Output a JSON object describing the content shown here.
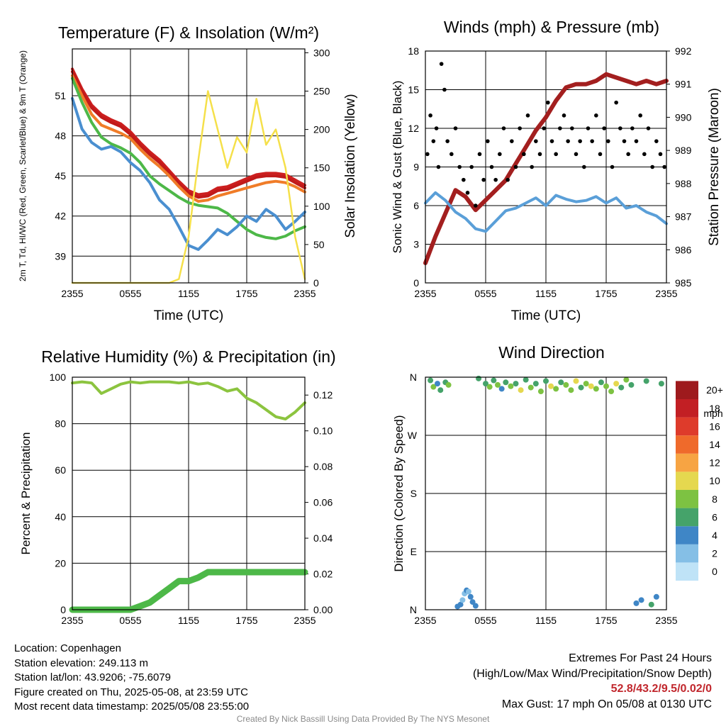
{
  "chart_data": [
    {
      "type": "line",
      "title": "Temperature (F) & Insolation (W/m²)",
      "xlabel": "Time (UTC)",
      "ylabel": "2m T, Td, HI/WC (Red, Green, Scarlet/Blue) & 9m T (Orange)",
      "y2label": "Solar Insolation (Yellow)",
      "x_ticks": [
        "2355",
        "0555",
        "1155",
        "1755",
        "2355"
      ],
      "ylim": [
        37,
        54.5
      ],
      "y_ticks": [
        39,
        42,
        45,
        48,
        51
      ],
      "y2lim": [
        0,
        305
      ],
      "y2_ticks": [
        0,
        50,
        100,
        150,
        200,
        250,
        300
      ],
      "grid": true,
      "series": [
        {
          "name": "2m T",
          "color": "#cc1f1f",
          "axis": "left",
          "x": [
            0,
            1,
            2,
            3,
            4,
            5,
            6,
            7,
            8,
            9,
            10,
            11,
            12,
            13,
            14,
            15,
            16,
            17,
            18,
            19,
            20,
            21,
            22,
            23,
            24
          ],
          "values": [
            53.0,
            51.5,
            50.3,
            49.6,
            49.2,
            48.9,
            48.3,
            47.5,
            46.8,
            46.2,
            45.4,
            44.6,
            43.9,
            43.6,
            43.7,
            44.1,
            44.2,
            44.5,
            44.8,
            45.1,
            45.2,
            45.2,
            45.1,
            44.7,
            44.3
          ]
        },
        {
          "name": "HI/WC",
          "color": "#c11a1a",
          "axis": "left",
          "x": [
            0,
            1,
            2,
            3,
            4,
            5,
            6,
            7,
            8,
            9,
            10,
            11,
            12,
            13,
            14,
            15,
            16,
            17,
            18,
            19,
            20,
            21,
            22,
            23,
            24
          ],
          "values": [
            52.8,
            51.3,
            50.1,
            49.4,
            49.0,
            48.7,
            48.1,
            47.3,
            46.6,
            46.0,
            45.2,
            44.4,
            43.7,
            43.4,
            43.5,
            43.9,
            44.0,
            44.3,
            44.6,
            44.9,
            45.0,
            45.0,
            44.9,
            44.5,
            44.1
          ]
        },
        {
          "name": "9m T",
          "color": "#f07c28",
          "axis": "left",
          "x": [
            0,
            1,
            2,
            3,
            4,
            5,
            6,
            7,
            8,
            9,
            10,
            11,
            12,
            13,
            14,
            15,
            16,
            17,
            18,
            19,
            20,
            21,
            22,
            23,
            24
          ],
          "values": [
            52.5,
            51.0,
            49.6,
            48.8,
            48.5,
            48.2,
            47.8,
            47.0,
            46.3,
            45.7,
            45.0,
            44.2,
            43.5,
            43.1,
            43.2,
            43.5,
            43.7,
            43.9,
            44.1,
            44.3,
            44.5,
            44.6,
            44.5,
            44.2,
            43.8
          ]
        },
        {
          "name": "Td",
          "color": "#4db848",
          "axis": "left",
          "x": [
            0,
            1,
            2,
            3,
            4,
            5,
            6,
            7,
            8,
            9,
            10,
            11,
            12,
            13,
            14,
            15,
            16,
            17,
            18,
            19,
            20,
            21,
            22,
            23,
            24
          ],
          "values": [
            52.3,
            50.5,
            49.0,
            47.9,
            47.4,
            47.1,
            46.7,
            46.0,
            45.0,
            44.4,
            43.9,
            43.4,
            43.0,
            42.8,
            42.7,
            42.6,
            42.2,
            41.6,
            41.0,
            40.6,
            40.4,
            40.3,
            40.5,
            40.9,
            41.2
          ]
        },
        {
          "name": "Wind Chill",
          "color": "#4a8fd0",
          "axis": "left",
          "x": [
            0,
            1,
            2,
            3,
            4,
            5,
            6,
            7,
            8,
            9,
            10,
            11,
            12,
            13,
            14,
            15,
            16,
            17,
            18,
            19,
            20,
            21,
            22,
            23,
            24
          ],
          "values": [
            50.8,
            48.5,
            47.5,
            47.0,
            47.2,
            46.8,
            46.0,
            45.4,
            44.5,
            43.2,
            42.5,
            41.2,
            39.8,
            39.5,
            40.2,
            41.0,
            40.6,
            41.2,
            42.0,
            41.6,
            42.5,
            42.0,
            41.0,
            41.6,
            42.3
          ]
        },
        {
          "name": "Solar Insolation",
          "color": "#f5e04a",
          "axis": "right",
          "x": [
            0,
            1,
            2,
            3,
            4,
            5,
            6,
            7,
            8,
            9,
            10,
            11,
            12,
            13,
            14,
            15,
            16,
            17,
            18,
            19,
            20,
            21,
            22,
            23,
            24
          ],
          "values": [
            0,
            0,
            0,
            0,
            0,
            0,
            0,
            0,
            0,
            0,
            0,
            5,
            60,
            160,
            250,
            200,
            150,
            190,
            170,
            240,
            180,
            200,
            150,
            60,
            5
          ]
        }
      ]
    },
    {
      "type": "scatter",
      "title": "Winds (mph) & Pressure (mb)",
      "xlabel": "Time (UTC)",
      "ylabel": "Sonic Wind & Gust (Blue, Black)",
      "y2label": "Station Pressure (Maroon)",
      "x_ticks": [
        "2355",
        "0555",
        "1155",
        "1755",
        "2355"
      ],
      "ylim": [
        0,
        18
      ],
      "y_ticks": [
        0,
        3,
        6,
        9,
        12,
        15,
        18
      ],
      "y2lim": [
        985,
        992
      ],
      "y2_ticks": [
        985,
        986,
        987,
        988,
        989,
        990,
        991,
        992
      ],
      "grid": true,
      "series": [
        {
          "name": "Station Pressure",
          "color": "#a31f1f",
          "type": "line",
          "axis": "right",
          "x": [
            0,
            1,
            2,
            3,
            4,
            5,
            6,
            7,
            8,
            9,
            10,
            11,
            12,
            13,
            14,
            15,
            16,
            17,
            18,
            19,
            20,
            21,
            22,
            23,
            24
          ],
          "values": [
            985.6,
            986.4,
            987.1,
            987.8,
            987.6,
            987.2,
            987.5,
            987.8,
            988.1,
            988.6,
            989.1,
            989.6,
            990.0,
            990.5,
            990.9,
            991.0,
            991.0,
            991.1,
            991.3,
            991.2,
            991.1,
            991.0,
            991.1,
            991.0,
            991.1
          ]
        },
        {
          "name": "Sonic Wind",
          "color": "#5a9fd8",
          "type": "line",
          "axis": "left",
          "x": [
            0,
            1,
            2,
            3,
            4,
            5,
            6,
            7,
            8,
            9,
            10,
            11,
            12,
            13,
            14,
            15,
            16,
            17,
            18,
            19,
            20,
            21,
            22,
            23,
            24
          ],
          "values": [
            6.2,
            7.0,
            6.4,
            5.5,
            5.0,
            4.2,
            4.0,
            4.8,
            5.6,
            5.8,
            6.2,
            6.6,
            6.0,
            6.8,
            6.5,
            6.3,
            6.4,
            6.7,
            6.2,
            6.6,
            5.8,
            6.0,
            5.5,
            5.2,
            4.6
          ]
        },
        {
          "name": "Gust",
          "color": "#000000",
          "type": "scatter",
          "axis": "left",
          "x": [
            0.2,
            0.5,
            0.8,
            1.1,
            1.3,
            1.6,
            1.9,
            2.2,
            2.6,
            3.0,
            3.4,
            3.8,
            4.2,
            4.6,
            5.0,
            5.4,
            5.8,
            6.2,
            6.6,
            7.0,
            7.4,
            7.8,
            8.2,
            8.6,
            9.0,
            9.4,
            9.8,
            10.2,
            10.6,
            11.0,
            11.4,
            11.8,
            12.2,
            12.6,
            13.0,
            13.4,
            13.8,
            14.2,
            14.6,
            15.0,
            15.4,
            15.8,
            16.2,
            16.6,
            17.0,
            17.4,
            17.8,
            18.2,
            18.6,
            19.0,
            19.4,
            19.8,
            20.2,
            20.6,
            21.0,
            21.4,
            21.8,
            22.2,
            22.6,
            23.0,
            23.4,
            23.8
          ],
          "values": [
            10,
            13,
            11,
            12,
            9,
            17,
            15,
            11,
            10,
            12,
            9,
            8,
            7,
            9,
            6,
            10,
            8,
            11,
            9,
            8,
            10,
            12,
            8,
            11,
            9,
            12,
            10,
            13,
            9,
            11,
            10,
            12,
            14,
            11,
            10,
            12,
            13,
            11,
            12,
            10,
            11,
            9,
            12,
            11,
            13,
            10,
            12,
            11,
            9,
            14,
            12,
            11,
            10,
            12,
            11,
            13,
            10,
            12,
            9,
            11,
            10,
            9
          ]
        }
      ]
    },
    {
      "type": "line",
      "title": "Relative Humidity (%) & Precipitation (in)",
      "ylabel": "Percent & Precipitation",
      "x_ticks": [
        "2355",
        "0555",
        "1155",
        "1755",
        "2355"
      ],
      "ylim": [
        0,
        100
      ],
      "y_ticks": [
        0,
        20,
        40,
        60,
        80,
        100
      ],
      "y2lim": [
        0,
        0.13
      ],
      "y2_ticks": [
        "0.00",
        "0.02",
        "0.04",
        "0.06",
        "0.08",
        "0.10",
        "0.12"
      ],
      "grid": true,
      "series": [
        {
          "name": "Relative Humidity",
          "color": "#8cc43f",
          "axis": "left",
          "x": [
            0,
            1,
            2,
            3,
            4,
            5,
            6,
            7,
            8,
            9,
            10,
            11,
            12,
            13,
            14,
            15,
            16,
            17,
            18,
            19,
            20,
            21,
            22,
            23,
            24
          ],
          "values": [
            97.5,
            98,
            97.5,
            93,
            95,
            97,
            98,
            97.5,
            98,
            98,
            98,
            97.5,
            98,
            97,
            97.5,
            96,
            94,
            95,
            91,
            89,
            86,
            83,
            82,
            85,
            89
          ]
        },
        {
          "name": "Precipitation",
          "color": "#4db848",
          "axis": "right",
          "x": [
            0,
            1,
            2,
            3,
            4,
            5,
            6,
            7,
            8,
            9,
            10,
            11,
            12,
            13,
            14,
            15,
            16,
            17,
            18,
            19,
            20,
            21,
            22,
            23,
            24
          ],
          "values": [
            0,
            0,
            0,
            0,
            0,
            0,
            0,
            0.002,
            0.004,
            0.008,
            0.012,
            0.016,
            0.016,
            0.018,
            0.021,
            0.021,
            0.021,
            0.021,
            0.021,
            0.021,
            0.021,
            0.021,
            0.021,
            0.021,
            0.021
          ]
        }
      ]
    },
    {
      "type": "scatter",
      "title": "Wind Direction",
      "ylabel": "Direction (Colored By Speed)",
      "x_ticks": [
        "2355",
        "0555",
        "1155",
        "1755",
        "2355"
      ],
      "y_ticks": [
        "N",
        "E",
        "S",
        "W",
        "N"
      ],
      "ylim": [
        0,
        360
      ],
      "grid": true,
      "colorbar": {
        "title": "mph",
        "labels": [
          "0",
          "2",
          "4",
          "6",
          "8",
          "10",
          "12",
          "14",
          "16",
          "18",
          "20+"
        ],
        "colors": [
          "#bfe3f7",
          "#85bfe6",
          "#3f86c6",
          "#45a36a",
          "#7dc242",
          "#e5d84f",
          "#f7a443",
          "#ef6a2b",
          "#de3b2b",
          "#c21f24",
          "#9e1a1d"
        ]
      },
      "series": [
        {
          "name": "Wind Direction",
          "type": "scatter",
          "x": [
            0.5,
            0.8,
            1.2,
            1.5,
            2.0,
            2.3,
            3.2,
            3.5,
            3.7,
            3.9,
            4.1,
            4.3,
            4.5,
            4.7,
            5.0,
            5.3,
            6.0,
            6.4,
            6.8,
            7.2,
            7.6,
            8.0,
            8.5,
            9.0,
            9.5,
            10.0,
            10.5,
            11.0,
            11.5,
            12.0,
            12.5,
            13.0,
            13.5,
            14.0,
            14.5,
            15.0,
            15.5,
            16.0,
            16.5,
            17.0,
            17.5,
            18.0,
            18.5,
            19.0,
            19.5,
            20.0,
            20.5,
            21.0,
            21.5,
            22.0,
            22.5,
            23.0,
            23.5
          ],
          "values": [
            355,
            345,
            350,
            340,
            352,
            348,
            5,
            8,
            15,
            25,
            30,
            28,
            20,
            12,
            6,
            358,
            350,
            345,
            355,
            348,
            342,
            352,
            346,
            350,
            340,
            356,
            344,
            350,
            338,
            354,
            346,
            342,
            352,
            348,
            340,
            354,
            344,
            350,
            346,
            342,
            352,
            346,
            338,
            350,
            344,
            356,
            348,
            10,
            15,
            354,
            8,
            20,
            350
          ],
          "speed": [
            6,
            7,
            4,
            5,
            6,
            8,
            4,
            3,
            2,
            2,
            3,
            2,
            4,
            3,
            4,
            5,
            6,
            7,
            5,
            8,
            4,
            6,
            7,
            5,
            9,
            6,
            7,
            5,
            8,
            6,
            9,
            7,
            6,
            8,
            7,
            10,
            6,
            8,
            9,
            7,
            6,
            8,
            7,
            9,
            6,
            8,
            5,
            4,
            3,
            6,
            5,
            4,
            6
          ]
        }
      ]
    }
  ],
  "footer": {
    "location": "Location: Copenhagen",
    "elevation": "Station elevation: 249.113 m",
    "latlon": "Station lat/lon: 43.9206; -75.6079",
    "created": "Figure created on Thu, 2025-05-08, at 23:59 UTC",
    "recent": "Most recent data timestamp: 2025/05/08 23:55:00",
    "extremes_title": "Extremes For Past 24 Hours",
    "extremes_sub": "(High/Low/Max Wind/Precipitation/Snow Depth)",
    "extremes_values": "52.8/43.2/9.5/0.02/0",
    "max_gust": "Max Gust: 17 mph On 05/08 at 0130 UTC",
    "credit": "Created By Nick Bassill Using Data Provided By The NYS Mesonet"
  }
}
